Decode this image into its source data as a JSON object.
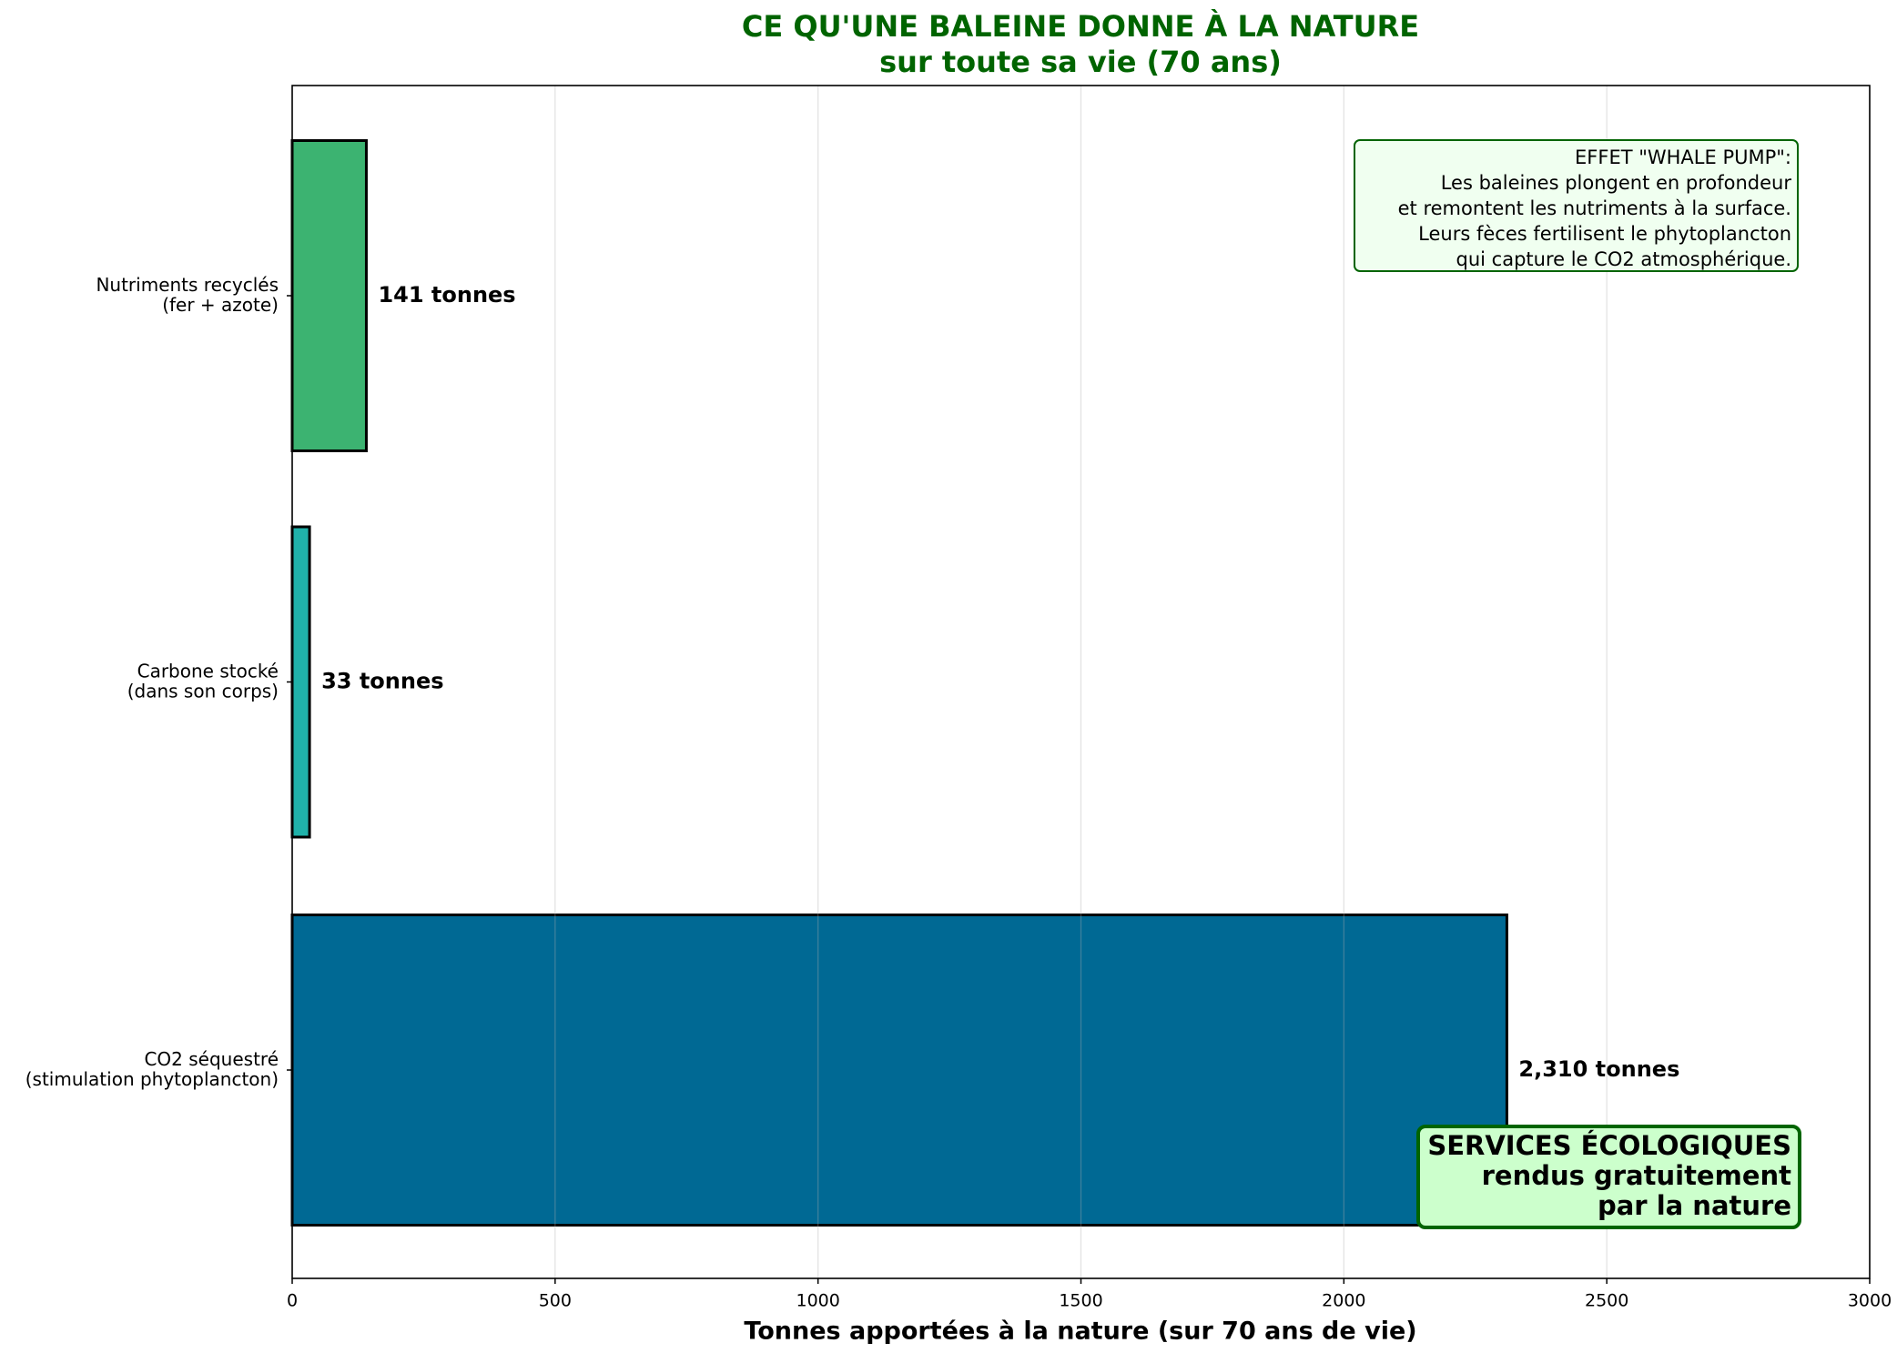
{
  "chart_data": {
    "type": "barh",
    "title": "CE QU'UNE BALEINE DONNE À LA NATURE\nsur toute sa vie (70 ans)",
    "xlabel": "Tonnes apportées à la nature (sur 70 ans de vie)",
    "categories": [
      "Nutriments recyclés\n(fer + azote)",
      "Carbone stocké\n(dans son corps)",
      "CO2 séquestré\n(stimulation phytoplancton)"
    ],
    "values": [
      141,
      33,
      2310
    ],
    "value_labels": [
      "141 tonnes",
      "33 tonnes",
      "2,310 tonnes"
    ],
    "colors": [
      "#3cb371",
      "#20b2aa",
      "#006994"
    ],
    "xlim": [
      0,
      3000
    ],
    "xticks": [
      0,
      500,
      1000,
      1500,
      2000,
      2500,
      3000
    ],
    "grid": "x",
    "annotations": [
      "EFFET \"WHALE PUMP\":\nLes baleines plongent en profondeur\net remontent les nutriments à la surface.\nLeurs fèces fertilisent le phytoplancton\nqui capture le CO2 atmosphérique.",
      "SERVICES ÉCOLOGIQUES\nrendus gratuitement\npar la nature"
    ]
  }
}
